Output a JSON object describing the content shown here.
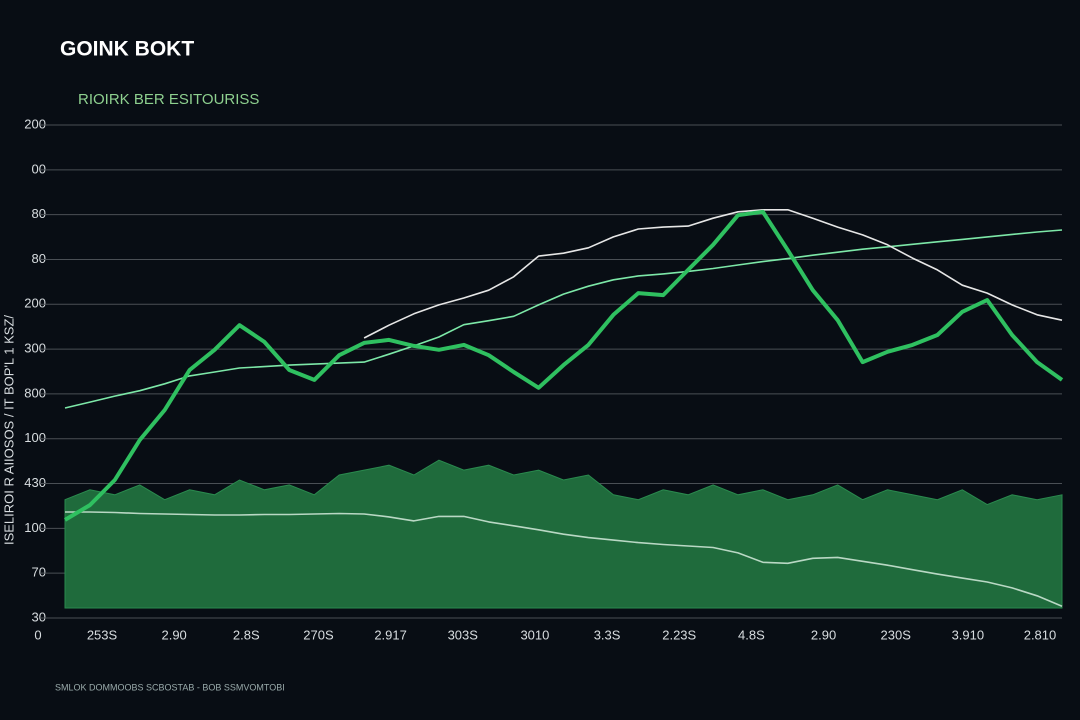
{
  "chart_data": {
    "type": "line",
    "title": "GOINK BOKT",
    "subtitle": "RIOIRK BER ESITOURISS",
    "y_axis_label": "ISELIROI R AIIOSOS / IT BOP'L 1 KSZ/",
    "footer": "SMLOK DOMMOOBS SCBOSTAB - BOB SSMVOMTOBI",
    "origin_label": "0",
    "y_labels": [
      "200",
      "00",
      "80",
      "80",
      "200",
      "300",
      "800",
      "100",
      "430",
      "100",
      "70",
      "30"
    ],
    "x_labels": [
      "253S",
      "2.90",
      "2.8S",
      "270S",
      "2.917",
      "303S",
      "3010",
      "3.3S",
      "2.23S",
      "4.8S",
      "2.90",
      "230S",
      "3.910",
      "2.810"
    ],
    "ylim": [
      0,
      100
    ],
    "grid": true,
    "series": [
      {
        "color": "#1f6b3c",
        "fill": true,
        "values": [
          24,
          26,
          25,
          27,
          24,
          26,
          25,
          28,
          26,
          27,
          25,
          29,
          30,
          31,
          29,
          32,
          30,
          31,
          29,
          30,
          28,
          29,
          25,
          24,
          26,
          25,
          27,
          25,
          26,
          24,
          25,
          27,
          24,
          26,
          25,
          24,
          26,
          23,
          25,
          24,
          25
        ]
      },
      {
        "color": "#b9d8c4",
        "values": [
          21.5,
          21.5,
          21.4,
          21.2,
          21.1,
          21,
          20.9,
          20.9,
          21,
          21,
          21.1,
          21.2,
          21.1,
          20.5,
          19.7,
          20.6,
          20.6,
          19.5,
          18.7,
          17.9,
          17,
          16.3,
          15.8,
          15.3,
          14.9,
          14.6,
          14.3,
          13.2,
          11.3,
          11.1,
          12.1,
          12.3,
          11.5,
          10.7,
          9.8,
          8.9,
          8.1,
          7.3,
          6.1,
          4.5,
          2.4
        ]
      },
      {
        "color": "#7de8a8",
        "values": [
          42.6,
          43.8,
          45,
          46.1,
          47.5,
          49.1,
          49.9,
          50.7,
          51,
          51.3,
          51.5,
          51.7,
          51.9,
          53.5,
          55.2,
          57,
          59.5,
          60.3,
          61.2,
          63.5,
          65.7,
          67.3,
          68.6,
          69.4,
          69.8,
          70.3,
          70.9,
          71.6,
          72.3,
          72.9,
          73.6,
          74.2,
          74.8,
          75.3,
          75.8,
          76.3,
          76.8,
          77.3,
          77.8,
          78.3,
          78.7
        ]
      },
      {
        "color": "#e6e6e6",
        "values": [
          null,
          null,
          null,
          null,
          null,
          null,
          null,
          null,
          null,
          null,
          null,
          null,
          56.8,
          59.4,
          61.7,
          63.5,
          64.9,
          66.5,
          69.2,
          73.4,
          74,
          75.1,
          77.3,
          78.9,
          79.3,
          79.5,
          81.1,
          82.4,
          82.8,
          82.8,
          81.1,
          79.3,
          77.7,
          75.7,
          73,
          70.6,
          67.5,
          65.9,
          63.5,
          61.5,
          60.4
        ]
      },
      {
        "color": "#2fc060",
        "width": 4,
        "values": [
          19.9,
          22.9,
          28,
          36.1,
          42.2,
          50.3,
          54.4,
          59.4,
          56,
          50.3,
          48.3,
          53.3,
          55.8,
          56.4,
          55.2,
          54.4,
          55.4,
          53.3,
          49.9,
          46.7,
          51.3,
          55.4,
          61.5,
          65.9,
          65.5,
          70.6,
          75.7,
          81.7,
          82.4,
          74.6,
          66.5,
          60.4,
          51.9,
          54,
          55.4,
          57.4,
          62.1,
          64.5,
          57.4,
          51.9,
          48.3
        ]
      }
    ]
  }
}
